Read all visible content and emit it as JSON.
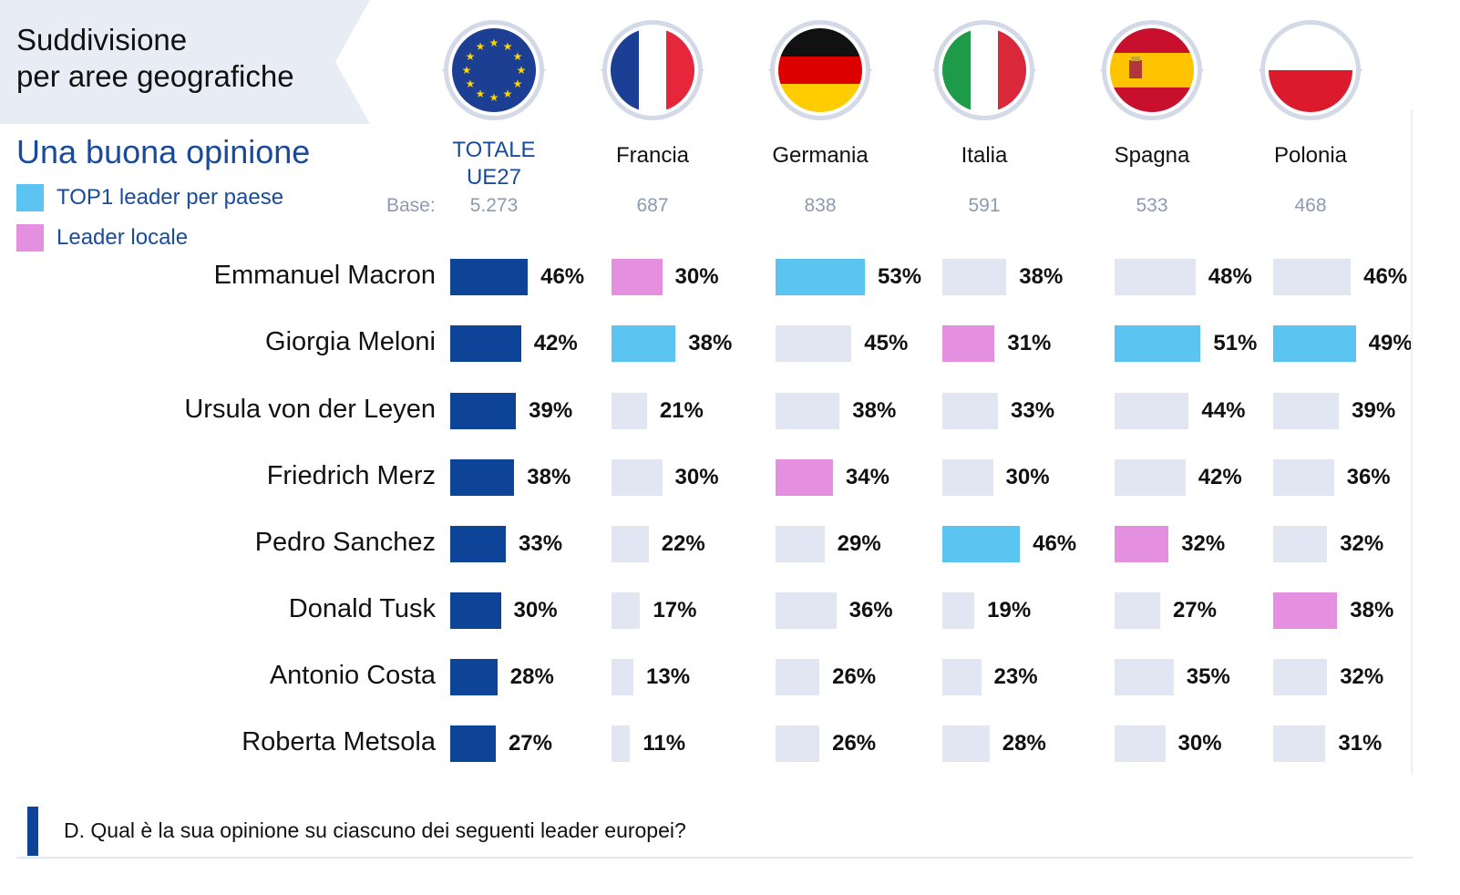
{
  "header": {
    "title_line1": "Suddivisione",
    "title_line2": "per aree geografiche"
  },
  "subtitle": "Una buona opinione",
  "legend": {
    "top1": "TOP1  leader per paese",
    "local": "Leader locale"
  },
  "base_label": "Base:",
  "colors": {
    "total": "#0e4497",
    "top1": "#5cc4f0",
    "local": "#e48fe0",
    "other": "#e1e6f2",
    "accent_text": "#1a4b9b"
  },
  "question": "D. Qual è la sua opinione su ciascuno dei seguenti leader europei?",
  "chart_data": {
    "type": "bar",
    "orientation": "horizontal",
    "categories": [
      "Emmanuel Macron",
      "Giorgia Meloni",
      "Ursula von der Leyen",
      "Friedrich Merz",
      "Pedro Sanchez",
      "Donald Tusk",
      "Antonio Costa",
      "Roberta Metsola"
    ],
    "series": [
      {
        "name": "TOTALE UE27",
        "name_line1": "TOTALE",
        "name_line2": "UE27",
        "base": "5.273",
        "flag": "eu",
        "values": [
          46,
          42,
          39,
          38,
          33,
          30,
          28,
          27
        ],
        "labels": [
          "46%",
          "42%",
          "39%",
          "38%",
          "33%",
          "30%",
          "28%",
          "27%"
        ],
        "highlight": [
          "total",
          "total",
          "total",
          "total",
          "total",
          "total",
          "total",
          "total"
        ]
      },
      {
        "name": "Francia",
        "base": "687",
        "flag": "fr",
        "values": [
          30,
          38,
          21,
          30,
          22,
          17,
          13,
          11
        ],
        "labels": [
          "30%",
          "38%",
          "21%",
          "30%",
          "22%",
          "17%",
          "13%",
          "11%"
        ],
        "highlight": [
          "local",
          "top1",
          "other",
          "other",
          "other",
          "other",
          "other",
          "other"
        ]
      },
      {
        "name": "Germania",
        "base": "838",
        "flag": "de",
        "values": [
          53,
          45,
          38,
          34,
          29,
          36,
          26,
          26
        ],
        "labels": [
          "53%",
          "45%",
          "38%",
          "34%",
          "29%",
          "36%",
          "26%",
          "26%"
        ],
        "highlight": [
          "top1",
          "other",
          "other",
          "local",
          "other",
          "other",
          "other",
          "other"
        ]
      },
      {
        "name": "Italia",
        "base": "591",
        "flag": "it",
        "values": [
          38,
          31,
          33,
          30,
          46,
          19,
          23,
          28
        ],
        "labels": [
          "38%",
          "31%",
          "33%",
          "30%",
          "46%",
          "19%",
          "23%",
          "28%"
        ],
        "highlight": [
          "other",
          "local",
          "other",
          "other",
          "top1",
          "other",
          "other",
          "other"
        ]
      },
      {
        "name": "Spagna",
        "base": "533",
        "flag": "es",
        "values": [
          48,
          51,
          44,
          42,
          32,
          27,
          35,
          30
        ],
        "labels": [
          "48%",
          "51%",
          "44%",
          "42%",
          "32%",
          "27%",
          "35%",
          "30%"
        ],
        "highlight": [
          "other",
          "top1",
          "other",
          "other",
          "local",
          "other",
          "other",
          "other"
        ]
      },
      {
        "name": "Polonia",
        "base": "468",
        "flag": "pl",
        "values": [
          46,
          49,
          39,
          36,
          32,
          38,
          32,
          31
        ],
        "labels": [
          "46%",
          "49%",
          "39%",
          "36%",
          "32%",
          "38%",
          "32%",
          "31%"
        ],
        "highlight": [
          "other",
          "top1",
          "other",
          "other",
          "other",
          "local",
          "other",
          "other"
        ]
      }
    ]
  }
}
